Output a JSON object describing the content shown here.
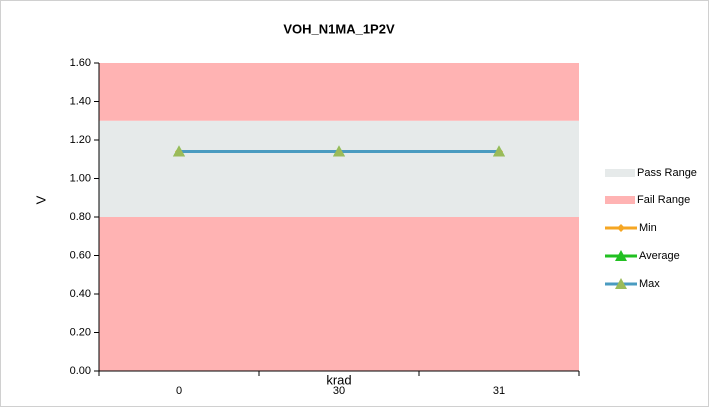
{
  "chart_data": {
    "type": "line",
    "title": "VOH_N1MA_1P2V",
    "x_label": "krad",
    "y_label": "V",
    "categories": [
      "0",
      "30",
      "31"
    ],
    "ylim": [
      0,
      1.6
    ],
    "yticks": [
      {
        "value": 0,
        "label": "0.00"
      },
      {
        "value": 0.2,
        "label": "0.20"
      },
      {
        "value": 0.4,
        "label": "0.40"
      },
      {
        "value": 0.6,
        "label": "0.60"
      },
      {
        "value": 0.8,
        "label": "0.80"
      },
      {
        "value": 1.0,
        "label": "1.00"
      },
      {
        "value": 1.2,
        "label": "1.20"
      },
      {
        "value": 1.4,
        "label": "1.40"
      },
      {
        "value": 1.6,
        "label": "1.60"
      }
    ],
    "ranges": [
      {
        "name": "Pass Range",
        "color": "#e6eaea",
        "bands": [
          [
            0.8,
            1.3
          ]
        ]
      },
      {
        "name": "Fail Range",
        "color": "#ffb3b3",
        "bands": [
          [
            0,
            0.8
          ],
          [
            1.3,
            1.6
          ]
        ]
      }
    ],
    "series": [
      {
        "name": "Min",
        "color": "#f5a623",
        "marker": "diamond",
        "marker_color": "#f5a623",
        "values": [
          1.14,
          1.14,
          1.14
        ]
      },
      {
        "name": "Average",
        "color": "#22c022",
        "marker": "triangle",
        "marker_color": "#22c022",
        "values": [
          1.14,
          1.14,
          1.14
        ]
      },
      {
        "name": "Max",
        "color": "#4a9bc0",
        "marker": "triangle",
        "marker_color": "#9bbb59",
        "values": [
          1.14,
          1.14,
          1.14
        ]
      }
    ]
  }
}
